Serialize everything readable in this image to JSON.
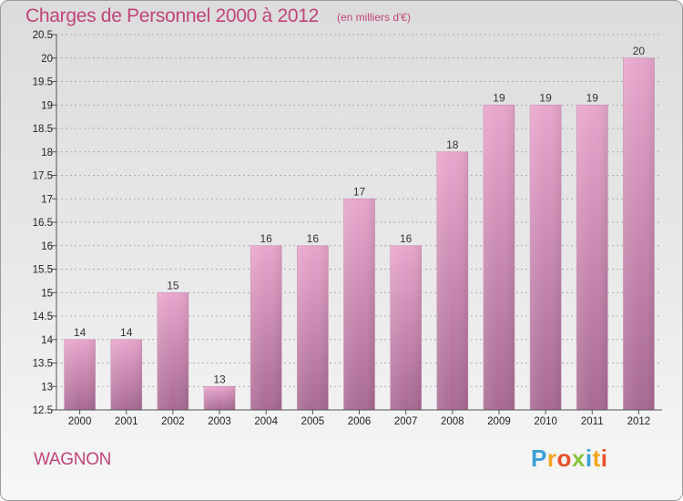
{
  "header": {
    "title": "Charges de Personnel 2000 à 2012",
    "subtitle": "(en milliers d'€)"
  },
  "footer": {
    "commune": "WAGNON",
    "brand": "Proxiti"
  },
  "colors": {
    "title": "#c0447a",
    "bar_top": "#e8a6cd",
    "bar_bottom": "#a86a92"
  },
  "chart_data": {
    "type": "bar",
    "title": "Charges de Personnel 2000 à 2012",
    "subtitle": "(en milliers d'€)",
    "xlabel": "",
    "ylabel": "",
    "categories": [
      "2000",
      "2001",
      "2002",
      "2003",
      "2004",
      "2005",
      "2006",
      "2007",
      "2008",
      "2009",
      "2010",
      "2011",
      "2012"
    ],
    "values": [
      14,
      14,
      15,
      13,
      16,
      16,
      17,
      16,
      18,
      19,
      19,
      19,
      20
    ],
    "data_labels": [
      "14",
      "14",
      "15",
      "13",
      "16",
      "16",
      "17",
      "16",
      "18",
      "19",
      "19",
      "19",
      "20"
    ],
    "ylim": [
      12.5,
      20.5
    ],
    "yticks": [
      "12.5",
      "13",
      "13.5",
      "14",
      "14.5",
      "15",
      "15.5",
      "16",
      "16.5",
      "17",
      "17.5",
      "18",
      "18.5",
      "19",
      "19.5",
      "20",
      "20.5"
    ],
    "grid": true
  }
}
